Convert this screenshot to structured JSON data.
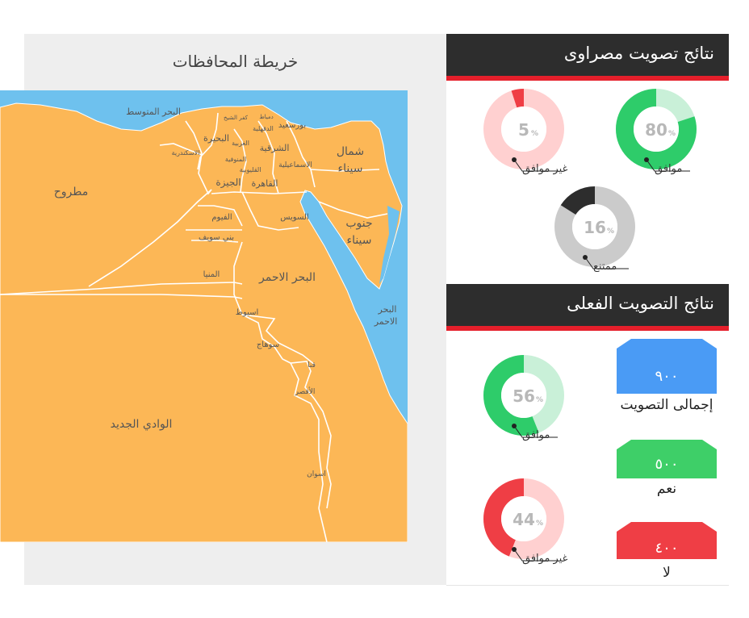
{
  "map": {
    "title": "خريطة المحافظات",
    "sea_color": "#6ec1ee",
    "land_color": "#fcb756",
    "governorates": {
      "mediterranean": "البحر المتوسط",
      "matrouh": "مطروح",
      "new_valley": "الوادي الجديد",
      "alexandria": "الاسكندرية",
      "beheira": "البحيرة",
      "kafr_elsheikh": "كفر الشيخ",
      "damietta": "دمياط",
      "dakahlia": "الدقهلية",
      "port_said": "بورسعيد",
      "gharbia": "الغربية",
      "menoufia": "المنوفية",
      "qalyubia": "القليوبية",
      "sharqia": "الشرقية",
      "ismailia": "الاسماعيلية",
      "giza": "الجيزة",
      "cairo": "القاهرة",
      "suez": "السويس",
      "north_sinai": "شمال سيناء",
      "south_sinai": "جنوب سيناء",
      "fayoum": "الفيوم",
      "beni_suef": "بني سويف",
      "minya": "المنيا",
      "red_sea_gov": "البحر الاحمر",
      "red_sea_water_1": "البحر",
      "red_sea_water_2": "الاحمر",
      "asyut": "اسيوط",
      "sohag": "سوهاج",
      "qena": "قنا",
      "luxor": "الأقصر",
      "aswan": "اسوان",
      "north_sinai_1": "شمال",
      "north_sinai_2": "سيناء",
      "south_sinai_1": "جنوب",
      "south_sinai_2": "سيناء"
    }
  },
  "masrawy": {
    "title": "نتائج تصويت مصراوى",
    "donuts": [
      {
        "key": "agree",
        "value": 80,
        "display": "80",
        "unit": "%",
        "label": "موافق",
        "color": "#2ecc6a",
        "track": "#c9f0d8"
      },
      {
        "key": "disagree",
        "value": 5,
        "display": "5",
        "unit": "%",
        "label": "غير موافق",
        "color": "#ef3e45",
        "track": "#ffd0d0"
      },
      {
        "key": "abstain",
        "value": 16,
        "display": "16",
        "unit": "%",
        "label": "ممتنع",
        "color": "#2d2d2d",
        "track": "#cbcbcb"
      }
    ]
  },
  "actual": {
    "title": "نتائج التصويت الفعلى",
    "donuts": [
      {
        "key": "agree",
        "value": 56,
        "display": "56",
        "unit": "%",
        "label": "موافق",
        "color": "#2ecc6a",
        "track": "#c9f0d8"
      },
      {
        "key": "disagree",
        "value": 44,
        "display": "44",
        "unit": "%",
        "label": "غير موافق",
        "color": "#ef3e45",
        "track": "#ffd0d0"
      }
    ],
    "stats": [
      {
        "key": "total",
        "value": "٩٠٠",
        "label": "إجمالى التصويت",
        "color": "#4a9bf5"
      },
      {
        "key": "yes",
        "value": "٥٠٠",
        "label": "نعم",
        "color": "#3ecf68"
      },
      {
        "key": "no",
        "value": "٤٠٠",
        "label": "لا",
        "color": "#ef3e45"
      }
    ]
  }
}
